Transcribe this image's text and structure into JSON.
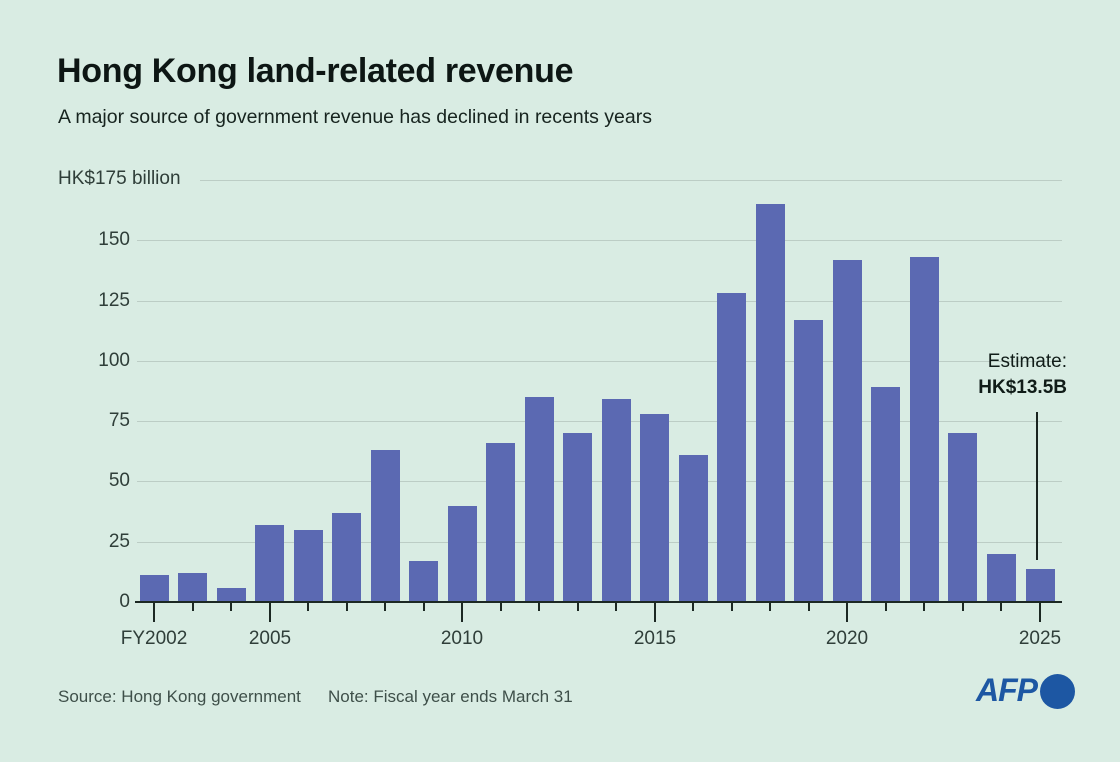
{
  "header": {
    "title": "Hong Kong land-related revenue",
    "subtitle": "A major source of government revenue has declined in recents years"
  },
  "chart_data": {
    "type": "bar",
    "title": "Hong Kong land-related revenue",
    "ylabel": "HK$ billion",
    "y_unit_label": "HK$175 billion",
    "ylim": [
      0,
      175
    ],
    "yticks": [
      0,
      25,
      50,
      75,
      100,
      125,
      150,
      175
    ],
    "grid": true,
    "categories": [
      "FY2002",
      "FY2003",
      "FY2004",
      "FY2005",
      "FY2006",
      "FY2007",
      "FY2008",
      "FY2009",
      "FY2010",
      "FY2011",
      "FY2012",
      "FY2013",
      "FY2014",
      "FY2015",
      "FY2016",
      "FY2017",
      "FY2018",
      "FY2019",
      "FY2020",
      "FY2021",
      "FY2022",
      "FY2023",
      "FY2024",
      "FY2025"
    ],
    "values": [
      11,
      12,
      6,
      32,
      30,
      37,
      63,
      17,
      40,
      66,
      85,
      70,
      84,
      78,
      61,
      128,
      165,
      117,
      142,
      89,
      143,
      70,
      20,
      13.5
    ],
    "x_axis_labels": [
      "FY2002",
      "2005",
      "2010",
      "2015",
      "2020",
      "2025"
    ],
    "labeled_indices": [
      0,
      3,
      8,
      13,
      18,
      23
    ],
    "bar_color": "#5b69b2",
    "annotation": {
      "line1": "Estimate:",
      "line2": "HK$13.5B",
      "target_index": 23
    }
  },
  "footer": {
    "source": "Source: Hong Kong government",
    "note": "Note: Fiscal year ends March 31",
    "logo_text": "AFP"
  },
  "colors": {
    "background": "#d9ece3",
    "bar": "#5b69b2",
    "gridline": "#bccdc5",
    "axis": "#1c2823",
    "title_text": "#0d1614",
    "axis_text": "#2f3e39",
    "footer_text": "#3e4f49",
    "afp_blue": "#1d57a3"
  }
}
